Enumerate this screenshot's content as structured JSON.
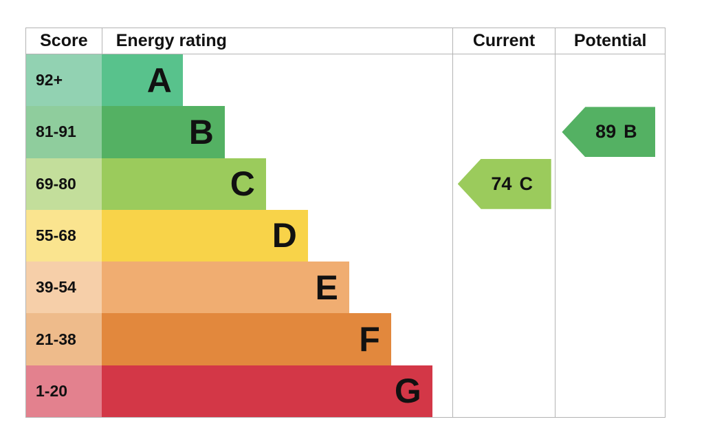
{
  "header": {
    "score": "Score",
    "energy_rating": "Energy rating",
    "current": "Current",
    "potential": "Potential"
  },
  "colors": {
    "border": "#b3b3b3",
    "text": "#111111",
    "current_arrow": "#9bcb5c",
    "potential_arrow": "#54b163"
  },
  "chart_data": {
    "type": "bar",
    "title": "EPC energy efficiency rating chart",
    "columns": [
      "Score",
      "Energy rating",
      "Current",
      "Potential"
    ],
    "categories": [
      "A",
      "B",
      "C",
      "D",
      "E",
      "F",
      "G"
    ],
    "bands": [
      {
        "letter": "A",
        "score_range": "92+",
        "bar_color": "#58c28c",
        "score_cell_color": "#92d2b2"
      },
      {
        "letter": "B",
        "score_range": "81-91",
        "bar_color": "#54b163",
        "score_cell_color": "#8fcd9d"
      },
      {
        "letter": "C",
        "score_range": "69-80",
        "bar_color": "#9bcb5c",
        "score_cell_color": "#c3de9b"
      },
      {
        "letter": "D",
        "score_range": "55-68",
        "bar_color": "#f8d349",
        "score_cell_color": "#fae48f"
      },
      {
        "letter": "E",
        "score_range": "39-54",
        "bar_color": "#f0ad71",
        "score_cell_color": "#f6cfa9"
      },
      {
        "letter": "F",
        "score_range": "21-38",
        "bar_color": "#e2883d",
        "score_cell_color": "#eebb8b"
      },
      {
        "letter": "G",
        "score_range": "1-20",
        "bar_color": "#d33747",
        "score_cell_color": "#e3818e"
      }
    ],
    "current": {
      "value": "74",
      "letter": "C",
      "band": "C",
      "color": "#9bcb5c"
    },
    "potential": {
      "value": "89",
      "letter": "B",
      "band": "B",
      "color": "#54b163"
    }
  }
}
